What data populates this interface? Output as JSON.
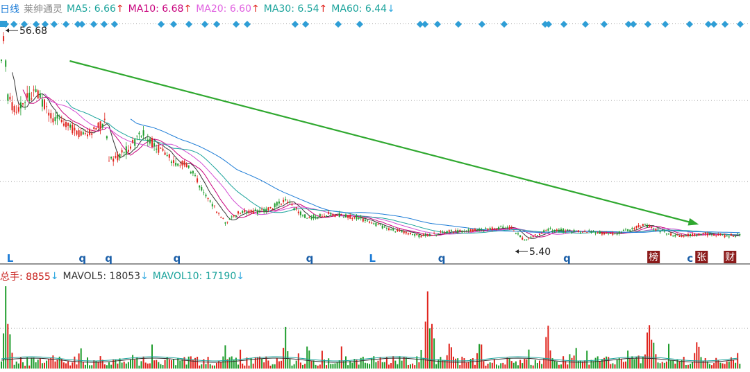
{
  "colors": {
    "ma5": "#333333",
    "ma10": "#c8007c",
    "ma20": "#d24fd2",
    "ma30": "#1aa39b",
    "ma60": "#1b7bd6",
    "up": "#e0231c",
    "down": "#1e9c2c",
    "arrow_green": "#2fa82f",
    "diamond": "#2f9ed6",
    "grid": "#999999",
    "badge": "#8b1a1a"
  },
  "header": {
    "period": "日线",
    "name": "莱绅通灵",
    "ma5_label": "MA5: 6.66",
    "ma5_dir": "↑",
    "ma10_label": "MA10: 6.68",
    "ma10_dir": "↑",
    "ma20_label": "MA20: 6.60",
    "ma20_dir": "↑",
    "ma30_label": "MA30: 6.54",
    "ma30_dir": "↑",
    "ma60_label": "MA60: 6.44",
    "ma60_dir": "↓"
  },
  "volume_header": {
    "total_label": "总手: 8855",
    "total_dir": "↓",
    "mavol5_label": "MAVOL5: 18053",
    "mavol5_dir": "↓",
    "mavol10_label": "MAVOL10: 17190",
    "mavol10_dir": "↓"
  },
  "price_annotations": {
    "high": "56.68",
    "low": "5.40"
  },
  "bottom_markers": [
    {
      "text": "L",
      "x": 0.009,
      "style": "plain"
    },
    {
      "text": "q",
      "x": 0.105,
      "style": "plain"
    },
    {
      "text": "q",
      "x": 0.14,
      "style": "plain"
    },
    {
      "text": "q",
      "x": 0.231,
      "style": "plain"
    },
    {
      "text": "q",
      "x": 0.408,
      "style": "plain"
    },
    {
      "text": "L",
      "x": 0.492,
      "style": "plain"
    },
    {
      "text": "q",
      "x": 0.584,
      "style": "plain"
    },
    {
      "text": "q",
      "x": 0.751,
      "style": "plain"
    },
    {
      "text": "榜",
      "x": 0.864,
      "style": "badge"
    },
    {
      "text": "c",
      "x": 0.916,
      "style": "plain"
    },
    {
      "text": "张",
      "x": 0.928,
      "style": "badge"
    },
    {
      "text": "财",
      "x": 0.966,
      "style": "badge"
    }
  ],
  "chart_data": {
    "type": "candlestick",
    "title": "",
    "xlabel": "",
    "ylabel": "",
    "price_high": 56.68,
    "price_low": 5.4,
    "ma_values": {
      "MA5": 6.66,
      "MA10": 6.68,
      "MA20": 6.6,
      "MA30": 6.54,
      "MA60": 6.44
    },
    "price_trend": [
      {
        "x": 0.0,
        "y": 0.78
      },
      {
        "x": 0.005,
        "y": 0.98
      },
      {
        "x": 0.01,
        "y": 0.7
      },
      {
        "x": 0.02,
        "y": 0.62
      },
      {
        "x": 0.035,
        "y": 0.68
      },
      {
        "x": 0.05,
        "y": 0.7
      },
      {
        "x": 0.07,
        "y": 0.6
      },
      {
        "x": 0.09,
        "y": 0.55
      },
      {
        "x": 0.11,
        "y": 0.52
      },
      {
        "x": 0.13,
        "y": 0.55
      },
      {
        "x": 0.14,
        "y": 0.58
      },
      {
        "x": 0.145,
        "y": 0.4
      },
      {
        "x": 0.16,
        "y": 0.42
      },
      {
        "x": 0.19,
        "y": 0.52
      },
      {
        "x": 0.21,
        "y": 0.46
      },
      {
        "x": 0.23,
        "y": 0.4
      },
      {
        "x": 0.25,
        "y": 0.38
      },
      {
        "x": 0.27,
        "y": 0.27
      },
      {
        "x": 0.3,
        "y": 0.12
      },
      {
        "x": 0.32,
        "y": 0.17
      },
      {
        "x": 0.35,
        "y": 0.17
      },
      {
        "x": 0.38,
        "y": 0.22
      },
      {
        "x": 0.41,
        "y": 0.14
      },
      {
        "x": 0.44,
        "y": 0.16
      },
      {
        "x": 0.48,
        "y": 0.14
      },
      {
        "x": 0.52,
        "y": 0.09
      },
      {
        "x": 0.56,
        "y": 0.06
      },
      {
        "x": 0.6,
        "y": 0.08
      },
      {
        "x": 0.65,
        "y": 0.09
      },
      {
        "x": 0.68,
        "y": 0.1
      },
      {
        "x": 0.7,
        "y": 0.04
      },
      {
        "x": 0.73,
        "y": 0.09
      },
      {
        "x": 0.78,
        "y": 0.08
      },
      {
        "x": 0.82,
        "y": 0.07
      },
      {
        "x": 0.86,
        "y": 0.11
      },
      {
        "x": 0.9,
        "y": 0.06
      },
      {
        "x": 0.94,
        "y": 0.07
      },
      {
        "x": 0.97,
        "y": 0.06
      },
      {
        "x": 0.99,
        "y": 0.07
      }
    ],
    "trend_arrow": {
      "from": {
        "x": 0.093,
        "y": 0.94
      },
      "to": {
        "x": 0.93,
        "y": 0.12
      }
    },
    "volume": {
      "total": 8855,
      "MAVOL5": 18053,
      "MAVOL10": 17190
    }
  }
}
